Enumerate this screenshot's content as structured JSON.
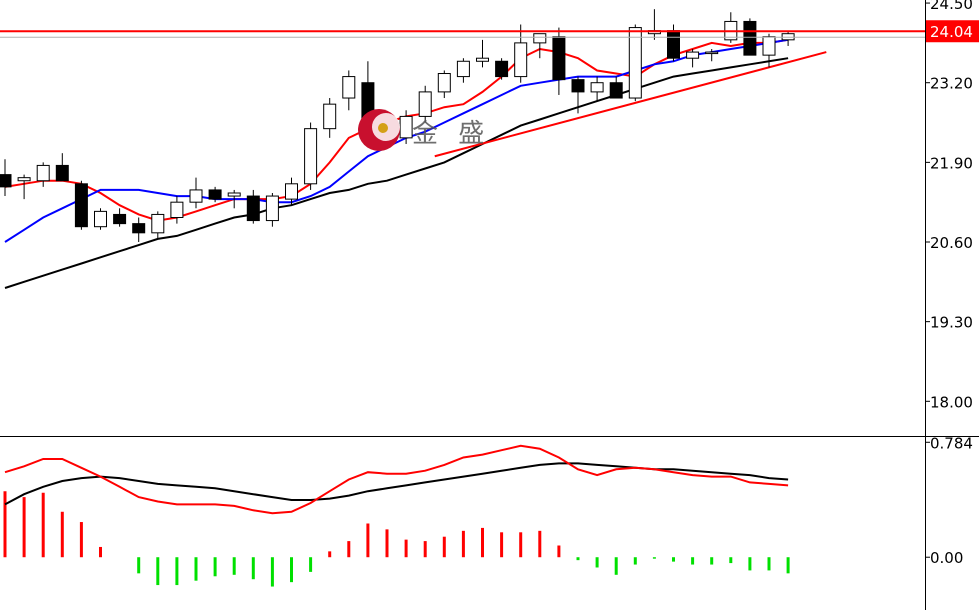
{
  "chart_data": {
    "type": "candlestick",
    "main_panel": {
      "y_ticks": [
        "24.50",
        "23.20",
        "21.90",
        "20.60",
        "19.30",
        "18.00"
      ],
      "y_tick_values": [
        24.5,
        23.2,
        21.9,
        20.6,
        19.3,
        18.0
      ],
      "ylim": [
        17.45,
        24.55
      ],
      "current_price": 24.04,
      "current_price_label": "24.04",
      "candles": [
        {
          "o": 21.7,
          "h": 21.95,
          "l": 21.35,
          "c": 21.5
        },
        {
          "o": 21.6,
          "h": 21.7,
          "l": 21.3,
          "c": 21.65
        },
        {
          "o": 21.6,
          "h": 21.9,
          "l": 21.5,
          "c": 21.85
        },
        {
          "o": 21.85,
          "h": 22.05,
          "l": 21.6,
          "c": 21.6
        },
        {
          "o": 21.55,
          "h": 21.6,
          "l": 20.8,
          "c": 20.85
        },
        {
          "o": 20.85,
          "h": 21.15,
          "l": 20.8,
          "c": 21.1
        },
        {
          "o": 21.05,
          "h": 21.15,
          "l": 20.85,
          "c": 20.9
        },
        {
          "o": 20.9,
          "h": 21.0,
          "l": 20.6,
          "c": 20.75
        },
        {
          "o": 20.75,
          "h": 21.1,
          "l": 20.65,
          "c": 21.05
        },
        {
          "o": 21.0,
          "h": 21.35,
          "l": 20.9,
          "c": 21.25
        },
        {
          "o": 21.25,
          "h": 21.65,
          "l": 21.15,
          "c": 21.45
        },
        {
          "o": 21.45,
          "h": 21.5,
          "l": 21.25,
          "c": 21.3
        },
        {
          "o": 21.35,
          "h": 21.45,
          "l": 21.15,
          "c": 21.4
        },
        {
          "o": 21.35,
          "h": 21.45,
          "l": 20.9,
          "c": 20.95
        },
        {
          "o": 20.95,
          "h": 21.4,
          "l": 20.85,
          "c": 21.35
        },
        {
          "o": 21.3,
          "h": 21.65,
          "l": 21.2,
          "c": 21.55
        },
        {
          "o": 21.55,
          "h": 22.55,
          "l": 21.45,
          "c": 22.45
        },
        {
          "o": 22.45,
          "h": 22.95,
          "l": 22.3,
          "c": 22.85
        },
        {
          "o": 22.95,
          "h": 23.4,
          "l": 22.75,
          "c": 23.3
        },
        {
          "o": 23.2,
          "h": 23.55,
          "l": 22.3,
          "c": 22.4
        },
        {
          "o": 22.45,
          "h": 22.55,
          "l": 22.25,
          "c": 22.3
        },
        {
          "o": 22.3,
          "h": 22.75,
          "l": 22.2,
          "c": 22.65
        },
        {
          "o": 22.65,
          "h": 23.15,
          "l": 22.55,
          "c": 23.05
        },
        {
          "o": 23.05,
          "h": 23.4,
          "l": 22.95,
          "c": 23.35
        },
        {
          "o": 23.3,
          "h": 23.6,
          "l": 23.2,
          "c": 23.55
        },
        {
          "o": 23.55,
          "h": 23.9,
          "l": 23.45,
          "c": 23.6
        },
        {
          "o": 23.55,
          "h": 23.6,
          "l": 23.25,
          "c": 23.3
        },
        {
          "o": 23.3,
          "h": 24.15,
          "l": 23.2,
          "c": 23.85
        },
        {
          "o": 23.85,
          "h": 24.0,
          "l": 23.6,
          "c": 24.0
        },
        {
          "o": 23.95,
          "h": 24.1,
          "l": 23.0,
          "c": 23.25
        },
        {
          "o": 23.25,
          "h": 23.3,
          "l": 22.7,
          "c": 23.05
        },
        {
          "o": 23.05,
          "h": 23.3,
          "l": 22.9,
          "c": 23.2
        },
        {
          "o": 23.2,
          "h": 23.3,
          "l": 22.95,
          "c": 22.95
        },
        {
          "o": 22.95,
          "h": 24.15,
          "l": 22.9,
          "c": 24.1
        },
        {
          "o": 24.0,
          "h": 24.4,
          "l": 23.9,
          "c": 24.05
        },
        {
          "o": 24.05,
          "h": 24.15,
          "l": 23.55,
          "c": 23.6
        },
        {
          "o": 23.6,
          "h": 23.75,
          "l": 23.45,
          "c": 23.7
        },
        {
          "o": 23.7,
          "h": 23.75,
          "l": 23.55,
          "c": 23.7
        },
        {
          "o": 23.9,
          "h": 24.35,
          "l": 23.85,
          "c": 24.2
        },
        {
          "o": 24.2,
          "h": 24.25,
          "l": 23.65,
          "c": 23.65
        },
        {
          "o": 23.65,
          "h": 24.0,
          "l": 23.45,
          "c": 23.95
        },
        {
          "o": 23.9,
          "h": 24.05,
          "l": 23.8,
          "c": 24.0
        }
      ],
      "series": [
        {
          "color": "#ff0000",
          "values": [
            21.5,
            21.55,
            21.6,
            21.6,
            21.55,
            21.4,
            21.2,
            21.05,
            20.95,
            21.0,
            21.1,
            21.2,
            21.3,
            21.3,
            21.3,
            21.35,
            21.55,
            21.9,
            22.3,
            22.45,
            22.55,
            22.65,
            22.7,
            22.8,
            22.85,
            23.05,
            23.3,
            23.6,
            23.75,
            23.7,
            23.6,
            23.4,
            23.35,
            23.3,
            23.5,
            23.65,
            23.75,
            23.85,
            23.8,
            23.85,
            23.85,
            23.9
          ]
        },
        {
          "color": "#0000ff",
          "values": [
            20.6,
            20.8,
            21.0,
            21.15,
            21.3,
            21.45,
            21.45,
            21.45,
            21.4,
            21.35,
            21.35,
            21.3,
            21.3,
            21.3,
            21.25,
            21.25,
            21.35,
            21.5,
            21.75,
            22.0,
            22.15,
            22.3,
            22.4,
            22.55,
            22.7,
            22.85,
            23.0,
            23.15,
            23.2,
            23.25,
            23.3,
            23.3,
            23.3,
            23.4,
            23.5,
            23.55,
            23.65,
            23.7,
            23.75,
            23.8,
            23.85,
            23.9
          ]
        },
        {
          "color": "#000000",
          "values": [
            19.85,
            19.95,
            20.05,
            20.15,
            20.25,
            20.35,
            20.45,
            20.55,
            20.65,
            20.7,
            20.8,
            20.9,
            21.0,
            21.05,
            21.15,
            21.2,
            21.3,
            21.4,
            21.45,
            21.55,
            21.6,
            21.7,
            21.8,
            21.9,
            22.05,
            22.2,
            22.35,
            22.5,
            22.6,
            22.7,
            22.8,
            22.9,
            23.0,
            23.1,
            23.2,
            23.3,
            23.35,
            23.4,
            23.45,
            23.5,
            23.55,
            23.6
          ]
        }
      ],
      "trendline": {
        "color": "#ff0000",
        "x0": 22.5,
        "y0": 22.0,
        "x1": 43.0,
        "y1": 23.7
      }
    },
    "sub_panel": {
      "type": "macd",
      "y_ticks": [
        "0.784",
        "0.00"
      ],
      "y_tick_values": [
        0.784,
        0.0
      ],
      "ylim": [
        -0.36,
        0.82
      ],
      "histogram": [
        0.45,
        0.41,
        0.44,
        0.31,
        0.24,
        0.07,
        0.0,
        -0.11,
        -0.19,
        -0.19,
        -0.16,
        -0.13,
        -0.12,
        -0.15,
        -0.2,
        -0.17,
        -0.1,
        0.04,
        0.11,
        0.23,
        0.19,
        0.12,
        0.11,
        0.14,
        0.18,
        0.2,
        0.17,
        0.17,
        0.18,
        0.08,
        -0.02,
        -0.07,
        -0.12,
        -0.05,
        -0.01,
        -0.03,
        -0.05,
        -0.05,
        -0.04,
        -0.09,
        -0.09,
        -0.11
      ],
      "series": [
        {
          "color": "#000000",
          "values": [
            0.36,
            0.43,
            0.48,
            0.52,
            0.54,
            0.55,
            0.54,
            0.52,
            0.5,
            0.49,
            0.48,
            0.47,
            0.45,
            0.43,
            0.41,
            0.39,
            0.39,
            0.4,
            0.42,
            0.45,
            0.47,
            0.49,
            0.51,
            0.53,
            0.55,
            0.57,
            0.59,
            0.61,
            0.63,
            0.64,
            0.64,
            0.63,
            0.62,
            0.61,
            0.6,
            0.6,
            0.59,
            0.58,
            0.57,
            0.56,
            0.54,
            0.53
          ]
        },
        {
          "color": "#ff0000",
          "values": [
            0.58,
            0.62,
            0.67,
            0.67,
            0.61,
            0.55,
            0.48,
            0.41,
            0.38,
            0.36,
            0.36,
            0.36,
            0.35,
            0.32,
            0.3,
            0.31,
            0.37,
            0.45,
            0.53,
            0.58,
            0.57,
            0.57,
            0.59,
            0.63,
            0.68,
            0.7,
            0.73,
            0.76,
            0.74,
            0.68,
            0.6,
            0.56,
            0.6,
            0.61,
            0.6,
            0.58,
            0.56,
            0.55,
            0.55,
            0.51,
            0.5,
            0.49
          ]
        }
      ]
    },
    "watermark_text": "金 盛"
  }
}
